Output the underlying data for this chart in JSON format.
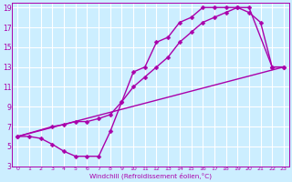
{
  "line1_x": [
    0,
    23
  ],
  "line1_y": [
    6,
    13
  ],
  "line2_x": [
    0,
    1,
    2,
    3,
    4,
    5,
    6,
    7,
    8,
    9,
    10,
    11,
    12,
    13,
    14,
    15,
    16,
    17,
    18,
    19,
    20,
    21,
    22,
    23
  ],
  "line2_y": [
    6.0,
    6.0,
    5.8,
    5.2,
    4.5,
    4.0,
    4.0,
    4.0,
    6.5,
    9.5,
    12.5,
    13.0,
    15.5,
    16.0,
    17.5,
    18.0,
    19.0,
    19.0,
    19.0,
    19.0,
    18.5,
    17.5,
    13.0,
    13.0
  ],
  "line3_x": [
    0,
    3,
    4,
    5,
    6,
    7,
    8,
    9,
    10,
    11,
    12,
    13,
    14,
    15,
    16,
    17,
    18,
    19,
    20,
    22,
    23
  ],
  "line3_y": [
    6.0,
    7.0,
    7.2,
    7.5,
    7.5,
    7.8,
    8.2,
    9.5,
    11.0,
    12.0,
    13.0,
    14.0,
    15.5,
    16.5,
    17.5,
    18.0,
    18.5,
    19.0,
    19.0,
    13.0,
    13.0
  ],
  "xlim": [
    -0.5,
    23.5
  ],
  "ylim": [
    3,
    19.5
  ],
  "xtick_labels": [
    "0",
    "1",
    "2",
    "3",
    "4",
    "5",
    "6",
    "7",
    "8",
    "9",
    "10",
    "11",
    "12",
    "13",
    "14",
    "15",
    "16",
    "17",
    "18",
    "19",
    "20",
    "21",
    "22",
    "23"
  ],
  "xtick_vals": [
    0,
    1,
    2,
    3,
    4,
    5,
    6,
    7,
    8,
    9,
    10,
    11,
    12,
    13,
    14,
    15,
    16,
    17,
    18,
    19,
    20,
    21,
    22,
    23
  ],
  "ytick_vals": [
    3,
    5,
    7,
    9,
    11,
    13,
    15,
    17,
    19
  ],
  "ytick_labels": [
    "3",
    "5",
    "7",
    "9",
    "11",
    "13",
    "15",
    "17",
    "19"
  ],
  "xlabel": "Windchill (Refroidissement éolien,°C)",
  "line_color": "#aa00aa",
  "bg_color": "#cceeff",
  "grid_color": "#ffffff",
  "marker": "D",
  "marker_size": 2.5,
  "linewidth": 1.0
}
